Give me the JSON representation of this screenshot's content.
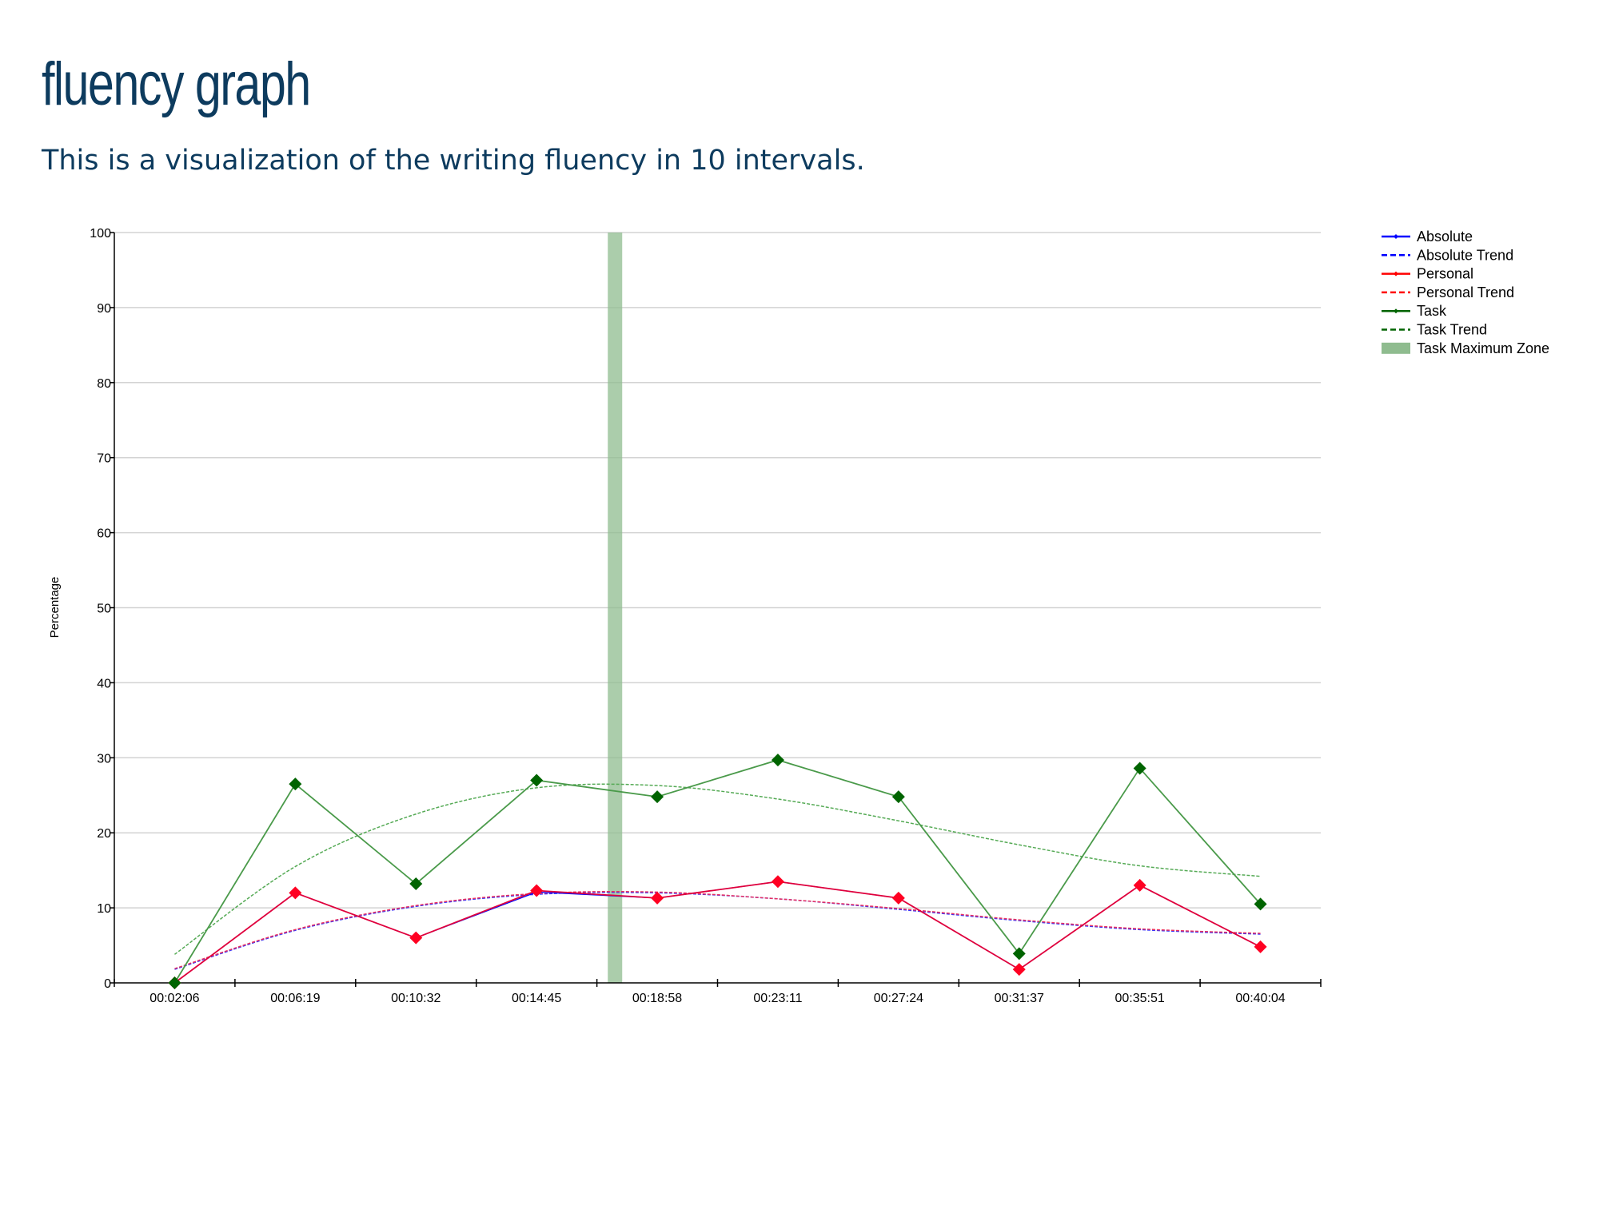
{
  "header": {
    "title": "fluency graph",
    "subtitle": "This is a visualization of the writing fluency in 10 intervals."
  },
  "chart_data": {
    "type": "line",
    "ylabel": "Percentage",
    "xlabel": "",
    "ylim": [
      0,
      100
    ],
    "yticks": [
      0,
      10,
      20,
      30,
      40,
      50,
      60,
      70,
      80,
      90,
      100
    ],
    "categories": [
      "00:02:06",
      "00:06:19",
      "00:10:32",
      "00:14:45",
      "00:18:58",
      "00:23:11",
      "00:27:24",
      "00:31:37",
      "00:35:51",
      "00:40:04"
    ],
    "grid": true,
    "legend_position": "top-right",
    "legend": [
      {
        "name": "Absolute",
        "style": "line-marker",
        "color": "#0000ff"
      },
      {
        "name": "Absolute Trend",
        "style": "dashed",
        "color": "#0000ff"
      },
      {
        "name": "Personal",
        "style": "line-marker",
        "color": "#ff0000"
      },
      {
        "name": "Personal Trend",
        "style": "dashed",
        "color": "#ff0000"
      },
      {
        "name": "Task",
        "style": "line-marker",
        "color": "#006400"
      },
      {
        "name": "Task Trend",
        "style": "dashed",
        "color": "#006400"
      },
      {
        "name": "Task Maximum Zone",
        "style": "band",
        "color": "#8fbc8f"
      }
    ],
    "series": [
      {
        "name": "Absolute",
        "color": "#0000ff",
        "values": [
          0,
          12.0,
          6.0,
          12.1,
          11.3,
          13.5,
          11.3,
          1.8,
          13.0,
          4.8
        ]
      },
      {
        "name": "Personal",
        "color": "#e0003c",
        "values": [
          0,
          12.0,
          6.0,
          12.3,
          11.3,
          13.5,
          11.3,
          1.8,
          13.0,
          4.8
        ]
      },
      {
        "name": "Task",
        "color": "#006400",
        "values": [
          0,
          26.5,
          13.2,
          27.0,
          24.8,
          29.7,
          24.8,
          3.9,
          28.6,
          10.5
        ]
      }
    ],
    "trends": [
      {
        "name": "Absolute Trend",
        "color": "#3333ff",
        "values": [
          1.8,
          7.0,
          10.2,
          11.8,
          12.0,
          11.2,
          9.8,
          8.3,
          7.1,
          6.5
        ]
      },
      {
        "name": "Personal Trend",
        "color": "#e83060",
        "values": [
          1.9,
          7.1,
          10.3,
          11.9,
          12.1,
          11.2,
          9.9,
          8.4,
          7.2,
          6.6
        ]
      },
      {
        "name": "Task Trend",
        "color": "#55aa55",
        "values": [
          3.8,
          15.5,
          22.5,
          26.0,
          26.3,
          24.5,
          21.6,
          18.4,
          15.6,
          14.2
        ]
      }
    ],
    "max_zone": {
      "name": "Task Maximum Zone",
      "between": [
        "00:14:45",
        "00:18:58"
      ],
      "fraction": 0.65,
      "color": "#8fbc8f"
    }
  }
}
